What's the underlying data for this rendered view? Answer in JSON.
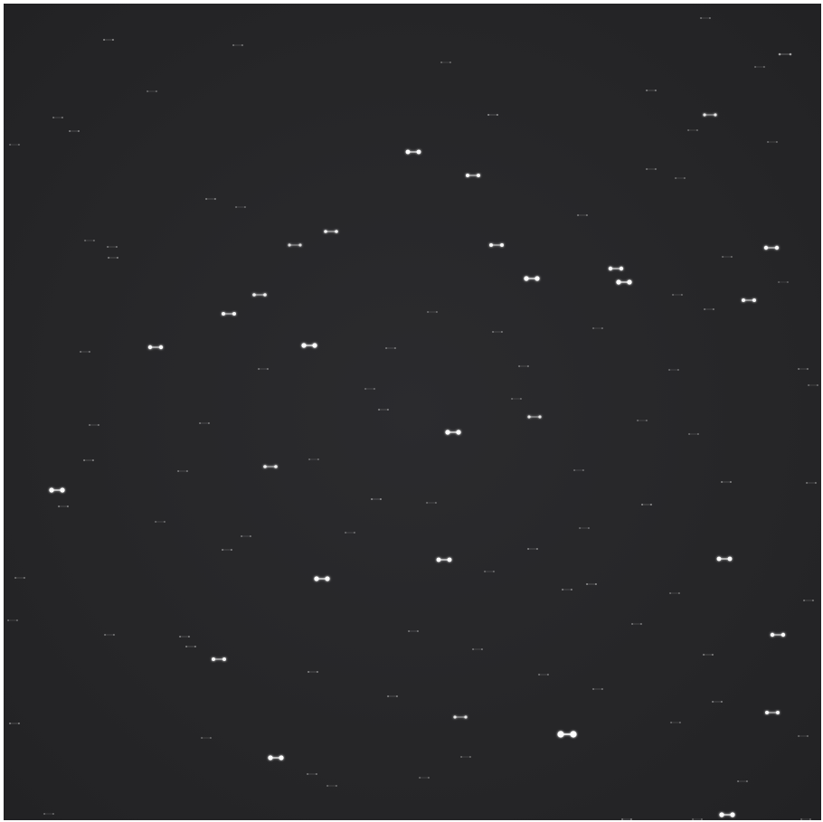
{
  "image": {
    "subject": "star-field",
    "background_color": "#27272a",
    "star_color": "#ffffff",
    "border_color": "#ffffff"
  }
}
